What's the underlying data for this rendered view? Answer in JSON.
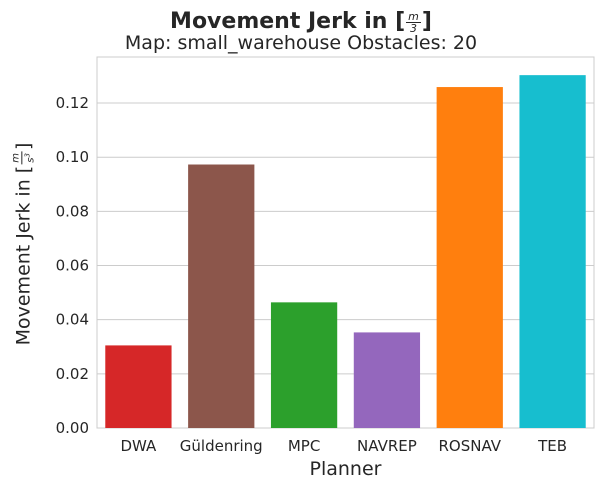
{
  "chart_data": {
    "type": "bar",
    "title": "Movement Jerk in [",
    "title_unit": {
      "numerator": "m",
      "denominator": "3",
      "close": "]"
    },
    "subtitle": "Map: small_warehouse Obstacles: 20",
    "xlabel": "Planner",
    "ylabel": "Movement Jerk in [",
    "ylabel_unit": {
      "numerator": "m",
      "denominator": "s",
      "exponent": "3",
      "close": "]"
    },
    "categories": [
      "DWA",
      "Güldenring",
      "MPC",
      "NAVREP",
      "ROSNAV",
      "TEB"
    ],
    "values": [
      0.0305,
      0.0973,
      0.0464,
      0.0353,
      0.1259,
      0.1303
    ],
    "colors": [
      "#d62728",
      "#8c564b",
      "#2ca02c",
      "#9467bd",
      "#ff7f0e",
      "#17becf"
    ],
    "ylim": [
      0,
      0.137
    ],
    "yticks": [
      "0.00",
      "0.02",
      "0.04",
      "0.06",
      "0.08",
      "0.10",
      "0.12"
    ],
    "ytick_values": [
      0,
      0.02,
      0.04,
      0.06,
      0.08,
      0.1,
      0.12
    ],
    "grid": "horizontal"
  }
}
